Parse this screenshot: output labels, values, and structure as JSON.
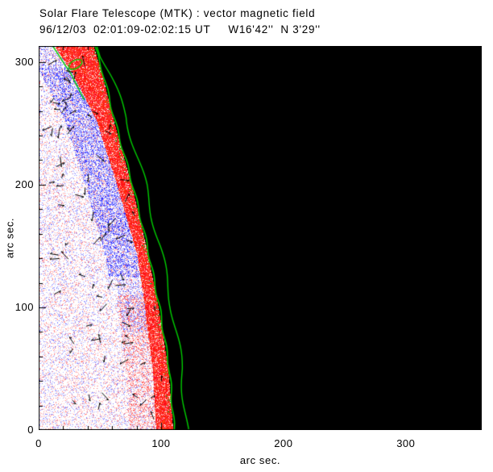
{
  "chart_data": {
    "type": "heatmap",
    "title": "Solar Flare Telescope (MTK) : vector magnetic field",
    "subtitle": "96/12/03  02:01:09-02:02:15 UT     W16'42''  N 3'29''",
    "xlabel": "arc sec.",
    "ylabel": "arc sec.",
    "xlim": [
      0,
      362
    ],
    "ylim": [
      0,
      313
    ],
    "xticks": [
      0,
      100,
      200,
      300
    ],
    "yticks": [
      0,
      100,
      200,
      300
    ],
    "minor_tick_step": 20,
    "grid": false,
    "legend": false,
    "colors": {
      "background": "#ffffff",
      "off_limb": "#000000",
      "positive_polarity": "#ff0000",
      "negative_polarity": "#3333ff",
      "contour": "#00cc00",
      "vectors": "#000000",
      "frame": "#000000"
    },
    "limb_curve": [
      [
        0,
        110
      ],
      [
        50,
        106
      ],
      [
        100,
        98
      ],
      [
        150,
        88
      ],
      [
        200,
        76
      ],
      [
        250,
        62
      ],
      [
        290,
        52
      ],
      [
        313,
        45
      ]
    ],
    "red_band_width": [
      [
        0,
        14
      ],
      [
        80,
        12
      ],
      [
        140,
        9
      ],
      [
        200,
        12
      ],
      [
        252,
        14
      ],
      [
        290,
        24
      ],
      [
        313,
        32
      ]
    ],
    "blue_band": {
      "y_range": [
        125,
        295
      ],
      "width": 26
    },
    "noise": {
      "seed": 42,
      "speckle_fraction": 0.28
    },
    "vector_count": 80
  }
}
